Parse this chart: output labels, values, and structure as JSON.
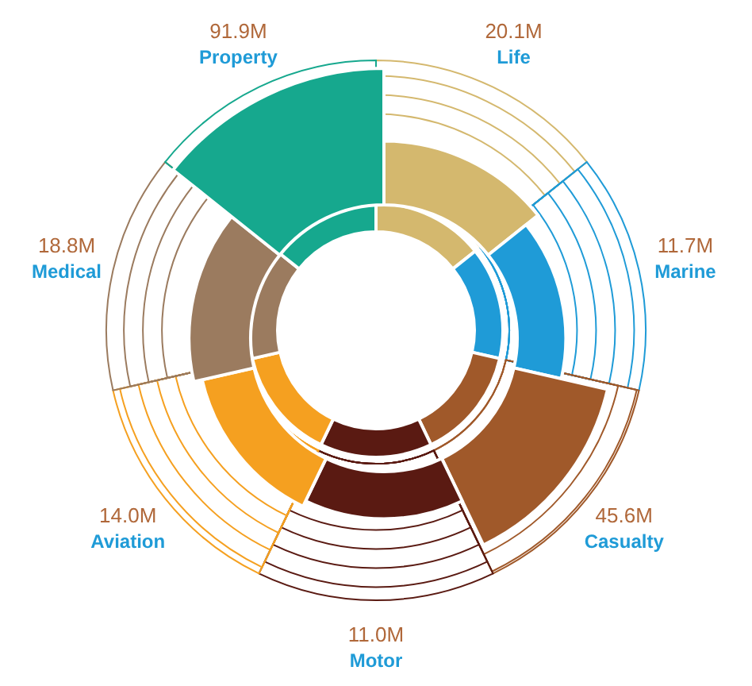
{
  "chart_data": {
    "type": "other",
    "categories": [
      "Life",
      "Marine",
      "Casualty",
      "Motor",
      "Aviation",
      "Medical",
      "Property"
    ],
    "values": [
      20.1,
      11.7,
      45.6,
      11.0,
      14.0,
      18.8,
      91.9
    ],
    "value_labels": [
      "20.1M",
      "11.7M",
      "45.6M",
      "11.0M",
      "14.0M",
      "18.8M",
      "91.9M"
    ],
    "colors": [
      "#d4b86e",
      "#1f9bd7",
      "#a0592a",
      "#5a1a12",
      "#f5a020",
      "#9b7b5f",
      "#16a88e"
    ]
  }
}
